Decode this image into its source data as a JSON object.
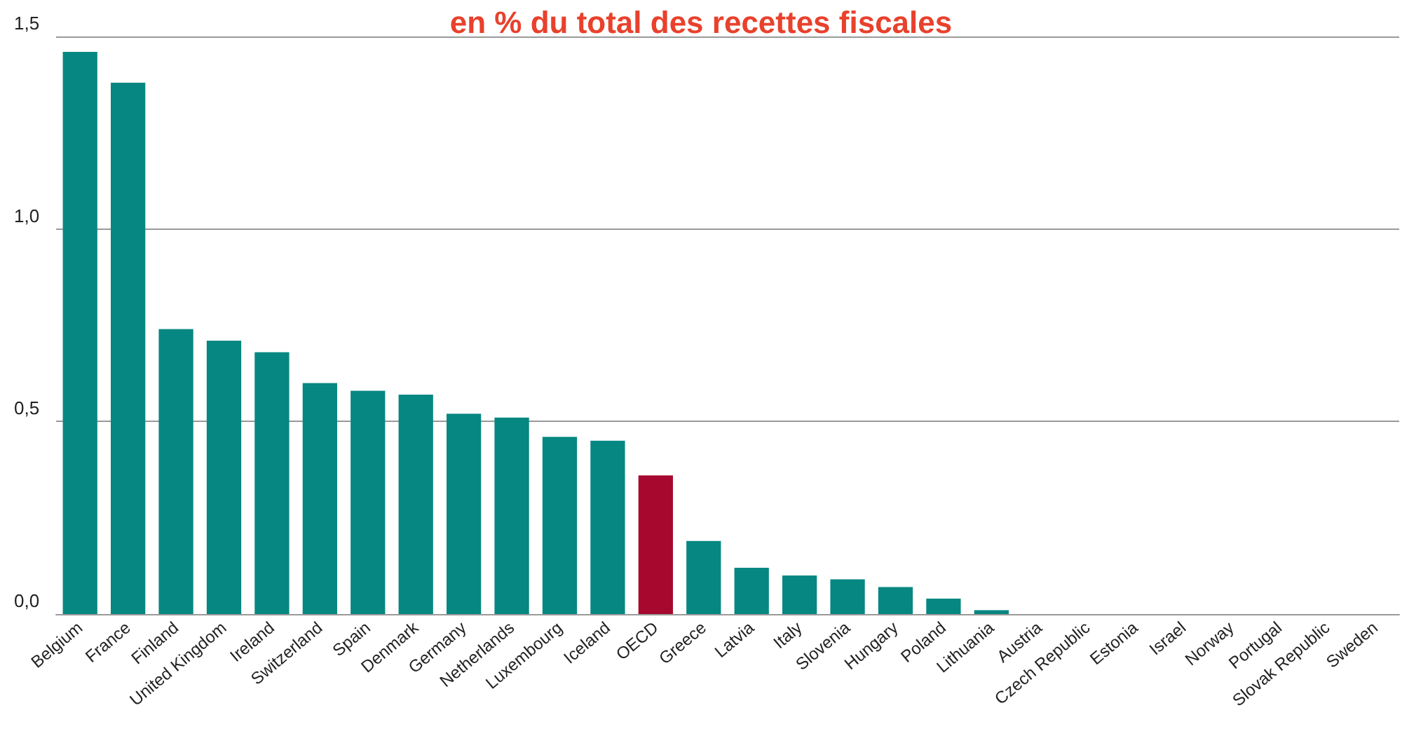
{
  "chart_data": {
    "type": "bar",
    "title": "en % du total des recettes fiscales",
    "categories": [
      "Belgium",
      "France",
      "Finland",
      "United Kingdom",
      "Ireland",
      "Switzerland",
      "Spain",
      "Denmark",
      "Germany",
      "Netherlands",
      "Luxembourg",
      "Iceland",
      "OECD",
      "Greece",
      "Latvia",
      "Italy",
      "Slovenia",
      "Hungary",
      "Poland",
      "Lithuania",
      "Austria",
      "Czech Republic",
      "Estonia",
      "Israel",
      "Norway",
      "Portugal",
      "Slovak Republic",
      "Sweden"
    ],
    "values": [
      1.46,
      1.38,
      0.74,
      0.71,
      0.68,
      0.6,
      0.58,
      0.57,
      0.52,
      0.51,
      0.46,
      0.45,
      0.36,
      0.19,
      0.12,
      0.1,
      0.09,
      0.07,
      0.04,
      0.01,
      0,
      0,
      0,
      0,
      0,
      0,
      0,
      0
    ],
    "colors": [
      "#078781",
      "#078781",
      "#078781",
      "#078781",
      "#078781",
      "#078781",
      "#078781",
      "#078781",
      "#078781",
      "#078781",
      "#078781",
      "#078781",
      "#a6092d",
      "#078781",
      "#078781",
      "#078781",
      "#078781",
      "#078781",
      "#078781",
      "#078781",
      "#078781",
      "#078781",
      "#078781",
      "#078781",
      "#078781",
      "#078781",
      "#078781",
      "#078781"
    ],
    "ylim": [
      0,
      1.5
    ],
    "yticks": [
      {
        "value": 0,
        "label": "0,0"
      },
      {
        "value": 0.5,
        "label": "0,5"
      },
      {
        "value": 1,
        "label": "1,0"
      },
      {
        "value": 1.5,
        "label": "1,5"
      }
    ],
    "grid": "y"
  }
}
